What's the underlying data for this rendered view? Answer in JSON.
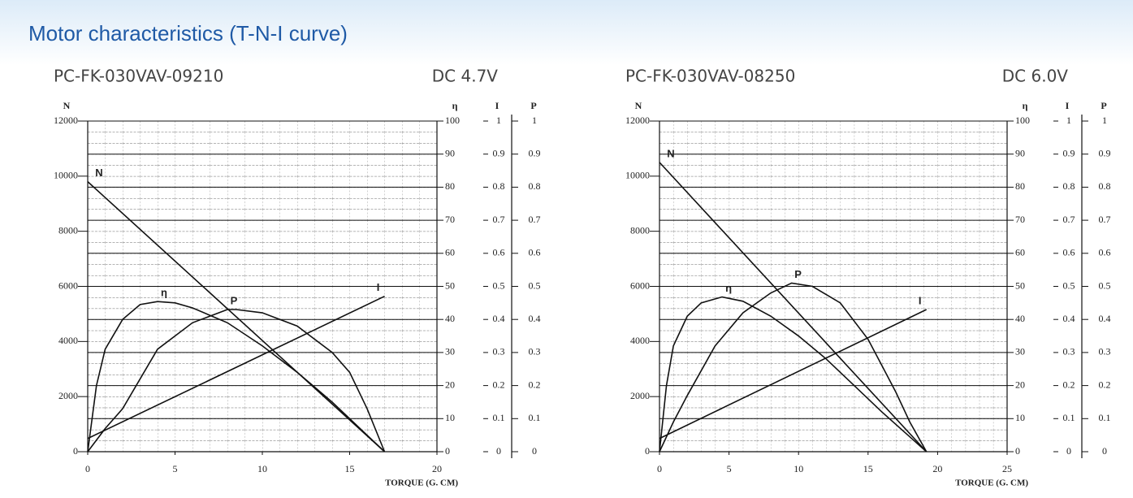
{
  "page_title": "Motor characteristics (T-N-I curve)",
  "chart_data": [
    {
      "type": "line",
      "title": "PC-FK-030VAV-09210",
      "subtitle": "DC 4.7V",
      "xlabel": "TORQUE (G. CM)",
      "xlim": [
        0,
        20
      ],
      "xticks": [
        0,
        5,
        10,
        15,
        20
      ],
      "ylabel": "N",
      "ylim": [
        0,
        12000
      ],
      "yticks": [
        0,
        2000,
        4000,
        6000,
        8000,
        10000,
        12000
      ],
      "y2label": "η",
      "y2lim": [
        0,
        100
      ],
      "y2ticks": [
        0,
        10,
        20,
        30,
        40,
        50,
        60,
        70,
        80,
        90,
        100
      ],
      "y3label": "I",
      "y3lim": [
        0,
        1
      ],
      "y3ticks": [
        0,
        0.1,
        0.2,
        0.3,
        0.4,
        0.5,
        0.6,
        0.7,
        0.8,
        0.9,
        1
      ],
      "y4label": "P",
      "y4lim": [
        0,
        1
      ],
      "y4ticks": [
        0,
        0.1,
        0.2,
        0.3,
        0.4,
        0.5,
        0.6,
        0.7,
        0.8,
        0.9,
        1
      ],
      "grid": true,
      "series": [
        {
          "name": "N",
          "color": "#111111",
          "axis": "y",
          "x": [
            0,
            17
          ],
          "values": [
            9800,
            0
          ]
        },
        {
          "name": "η",
          "color": "#111111",
          "axis": "y2",
          "x": [
            0,
            0.5,
            1,
            2,
            3,
            4,
            5,
            6,
            8,
            10,
            12,
            14,
            16,
            17
          ],
          "values": [
            0,
            20,
            31,
            40,
            44.5,
            45.4,
            45,
            43.5,
            39,
            32,
            24,
            15,
            5,
            0
          ]
        },
        {
          "name": "P",
          "color": "#111111",
          "axis": "y4",
          "x": [
            0,
            1,
            2,
            4,
            6,
            8,
            8.5,
            10,
            12,
            14,
            15,
            16,
            17
          ],
          "values": [
            0,
            0.07,
            0.13,
            0.31,
            0.39,
            0.43,
            0.43,
            0.42,
            0.38,
            0.3,
            0.24,
            0.13,
            0
          ]
        },
        {
          "name": "I",
          "color": "#111111",
          "axis": "y3",
          "x": [
            0,
            17
          ],
          "values": [
            0.04,
            0.47
          ]
        }
      ]
    },
    {
      "type": "line",
      "title": "PC-FK-030VAV-08250",
      "subtitle": "DC 6.0V",
      "xlabel": "TORQUE (G. CM)",
      "xlim": [
        0,
        25
      ],
      "xticks": [
        0,
        5,
        10,
        15,
        20,
        25
      ],
      "ylabel": "N",
      "ylim": [
        0,
        12000
      ],
      "yticks": [
        0,
        2000,
        4000,
        6000,
        8000,
        10000,
        12000
      ],
      "y2label": "η",
      "y2lim": [
        0,
        100
      ],
      "y2ticks": [
        0,
        10,
        20,
        30,
        40,
        50,
        60,
        70,
        80,
        90,
        100
      ],
      "y3label": "I",
      "y3lim": [
        0,
        1
      ],
      "y3ticks": [
        0,
        0.1,
        0.2,
        0.3,
        0.4,
        0.5,
        0.6,
        0.7,
        0.8,
        0.9,
        1
      ],
      "y4label": "P",
      "y4lim": [
        0,
        1
      ],
      "y4ticks": [
        0,
        0.1,
        0.2,
        0.3,
        0.4,
        0.5,
        0.6,
        0.7,
        0.8,
        0.9,
        1
      ],
      "grid": true,
      "series": [
        {
          "name": "N",
          "color": "#111111",
          "axis": "y",
          "x": [
            0,
            19.2
          ],
          "values": [
            10500,
            0
          ]
        },
        {
          "name": "η",
          "color": "#111111",
          "axis": "y2",
          "x": [
            0,
            0.5,
            1,
            2,
            3,
            4.5,
            6,
            8,
            10,
            12,
            14,
            16,
            18,
            19.2
          ],
          "values": [
            0,
            20,
            32,
            41,
            45,
            46.8,
            45.5,
            41,
            35,
            28,
            20,
            12,
            4.5,
            0
          ]
        },
        {
          "name": "P",
          "color": "#111111",
          "axis": "y4",
          "x": [
            0,
            1,
            2,
            4,
            6,
            8,
            9.5,
            11,
            13,
            15,
            16,
            17,
            18,
            19.2
          ],
          "values": [
            0,
            0.09,
            0.17,
            0.32,
            0.42,
            0.48,
            0.51,
            0.5,
            0.45,
            0.34,
            0.26,
            0.18,
            0.09,
            0
          ]
        },
        {
          "name": "I",
          "color": "#111111",
          "axis": "y3",
          "x": [
            0,
            19.2
          ],
          "values": [
            0.04,
            0.43
          ]
        }
      ]
    }
  ]
}
